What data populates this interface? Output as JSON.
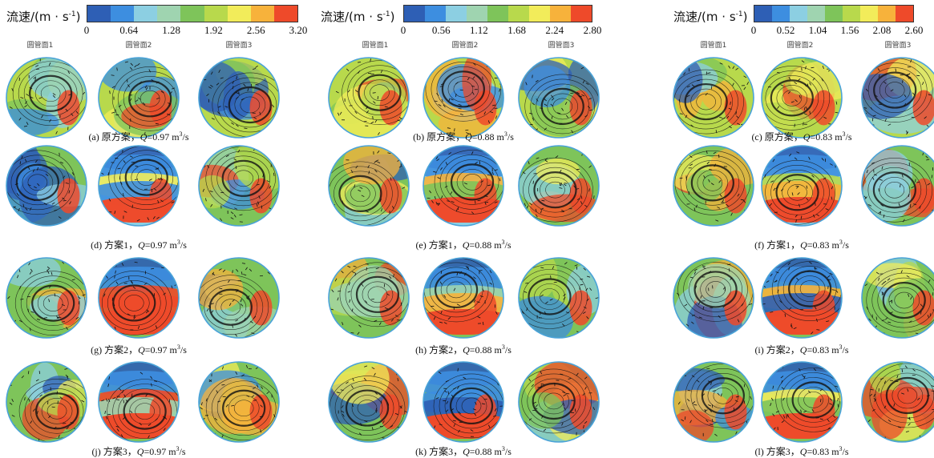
{
  "colorbars": [
    {
      "title": "流速/(m · s",
      "title_exp": "-1",
      "title_close": ")",
      "ticks": [
        "0",
        "0.64",
        "1.28",
        "1.92",
        "2.56",
        "3.20"
      ]
    },
    {
      "title": "流速/(m · s",
      "title_exp": "-1",
      "title_close": ")",
      "ticks": [
        "0",
        "0.56",
        "1.12",
        "1.68",
        "2.24",
        "2.80"
      ]
    },
    {
      "title": "流速/(m · s",
      "title_exp": "-1",
      "title_close": ")",
      "ticks": [
        "0",
        "0.52",
        "1.04",
        "1.56",
        "2.08",
        "2.60"
      ]
    }
  ],
  "section_labels": [
    "圆管面1",
    "圆管面2",
    "圆管面3"
  ],
  "colormap": [
    "#2e5fb5",
    "#3d8ee0",
    "#8ccfe2",
    "#9fd4b0",
    "#7ec45a",
    "#b8d94c",
    "#f2ec5a",
    "#f7b23b",
    "#ee4a2a"
  ],
  "captions": [
    [
      {
        "tag": "(a) 原方案，",
        "q": "Q",
        "val": "=0.97 m",
        "exp": "3",
        "unit": "/s"
      },
      {
        "tag": "(d) 方案1，",
        "q": "Q",
        "val": "=0.97 m",
        "exp": "3",
        "unit": "/s"
      },
      {
        "tag": "(g) 方案2，",
        "q": "Q",
        "val": "=0.97 m",
        "exp": "3",
        "unit": "/s"
      },
      {
        "tag": "(j) 方案3，",
        "q": "Q",
        "val": "=0.97 m",
        "exp": "3",
        "unit": "/s"
      }
    ],
    [
      {
        "tag": "(b) 原方案，",
        "q": "Q",
        "val": "=0.88 m",
        "exp": "3",
        "unit": "/s"
      },
      {
        "tag": "(e) 方案1，",
        "q": "Q",
        "val": "=0.88 m",
        "exp": "3",
        "unit": "/s"
      },
      {
        "tag": "(h) 方案2，",
        "q": "Q",
        "val": "=0.88 m",
        "exp": "3",
        "unit": "/s"
      },
      {
        "tag": "(k) 方案3，",
        "q": "Q",
        "val": "=0.88 m",
        "exp": "3",
        "unit": "/s"
      }
    ],
    [
      {
        "tag": "(c) 原方案，",
        "q": "Q",
        "val": "=0.83 m",
        "exp": "3",
        "unit": "/s"
      },
      {
        "tag": "(f) 方案1，",
        "q": "Q",
        "val": "=0.83 m",
        "exp": "3",
        "unit": "/s"
      },
      {
        "tag": "(i) 方案2，",
        "q": "Q",
        "val": "=0.83 m",
        "exp": "3",
        "unit": "/s"
      },
      {
        "tag": "(l) 方案3，",
        "q": "Q",
        "val": "=0.83 m",
        "exp": "3",
        "unit": "/s"
      }
    ]
  ]
}
